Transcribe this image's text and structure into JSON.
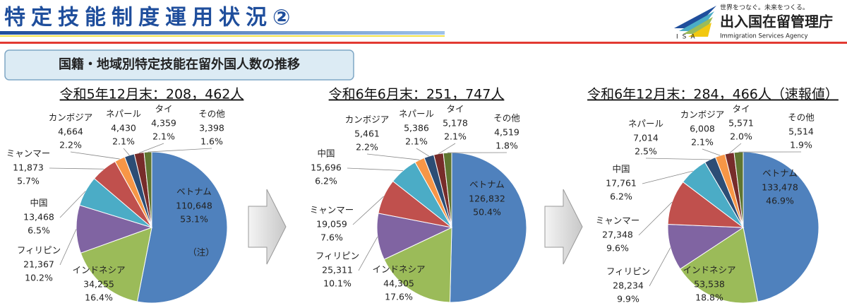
{
  "header": {
    "title": "特定技能制度運用状況②",
    "tagline": "世界をつなぐ。未来をつくる。",
    "agency": "出入国在留管理庁",
    "agency_en": "Immigration Services Agency",
    "logo": "ISA"
  },
  "subtitle": "国籍・地域別特定技能在留外国人数の推移",
  "chart_data": [
    {
      "type": "pie",
      "title": "令和5年12月末：208，462人",
      "annotation": "（注）",
      "categories": [
        "ベトナム",
        "インドネシア",
        "フィリピン",
        "中国",
        "ミャンマー",
        "カンボジア",
        "ネパール",
        "タイ",
        "その他"
      ],
      "values": [
        110648,
        34255,
        21367,
        13468,
        11873,
        4664,
        4430,
        4359,
        3398
      ],
      "value_labels": [
        "110,648",
        "34,255",
        "21,367",
        "13,468",
        "11,873",
        "4,664",
        "4,430",
        "4,359",
        "3,398"
      ],
      "percent_labels": [
        "53.1%",
        "16.4%",
        "10.2%",
        "6.5%",
        "5.7%",
        "2.2%",
        "2.1%",
        "2.1%",
        "1.6%"
      ],
      "colors": [
        "#4f81bd",
        "#9bbb59",
        "#8064a2",
        "#4bacc6",
        "#c0504d",
        "#f79646",
        "#2c4d75",
        "#772c2a",
        "#5f7530"
      ]
    },
    {
      "type": "pie",
      "title": "令和6年6月末：251，747人",
      "categories": [
        "ベトナム",
        "インドネシア",
        "フィリピン",
        "ミャンマー",
        "中国",
        "カンボジア",
        "ネパール",
        "タイ",
        "その他"
      ],
      "values": [
        126832,
        44305,
        25311,
        19059,
        15696,
        5461,
        5386,
        5178,
        4519
      ],
      "value_labels": [
        "126,832",
        "44,305",
        "25,311",
        "19,059",
        "15,696",
        "5,461",
        "5,386",
        "5,178",
        "4,519"
      ],
      "percent_labels": [
        "50.4%",
        "17.6%",
        "10.1%",
        "7.6%",
        "6.2%",
        "2.2%",
        "2.1%",
        "2.1%",
        "1.8%"
      ],
      "colors": [
        "#4f81bd",
        "#9bbb59",
        "#8064a2",
        "#c0504d",
        "#4bacc6",
        "#f79646",
        "#2c4d75",
        "#772c2a",
        "#5f7530"
      ]
    },
    {
      "type": "pie",
      "title": "令和6年12月末：284，466人（速報値）",
      "categories": [
        "ベトナム",
        "インドネシア",
        "フィリピン",
        "ミャンマー",
        "中国",
        "ネパール",
        "カンボジア",
        "タイ",
        "その他"
      ],
      "values": [
        133478,
        53538,
        28234,
        27348,
        17761,
        7014,
        6008,
        5571,
        5514
      ],
      "value_labels": [
        "133,478",
        "53,538",
        "28,234",
        "27,348",
        "17,761",
        "7,014",
        "6,008",
        "5,571",
        "5,514"
      ],
      "percent_labels": [
        "46.9%",
        "18.8%",
        "9.9%",
        "9.6%",
        "6.2%",
        "2.5%",
        "2.1%",
        "2.0%",
        "1.9%"
      ],
      "colors": [
        "#4f81bd",
        "#9bbb59",
        "#8064a2",
        "#c0504d",
        "#4bacc6",
        "#2c4d75",
        "#f79646",
        "#772c2a",
        "#5f7530"
      ]
    }
  ]
}
